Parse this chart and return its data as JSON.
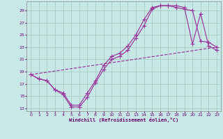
{
  "background_color": "#c8e8e8",
  "grid_color": "#a0c8b8",
  "line_color": "#993399",
  "xlabel": "Windchill (Refroidissement éolien,°C)",
  "xlim": [
    -0.5,
    23.5
  ],
  "ylim": [
    12.5,
    30.5
  ],
  "xticks": [
    0,
    1,
    2,
    3,
    4,
    5,
    6,
    7,
    8,
    9,
    10,
    11,
    12,
    13,
    14,
    15,
    16,
    17,
    18,
    19,
    20,
    21,
    22,
    23
  ],
  "yticks": [
    13,
    15,
    17,
    19,
    21,
    23,
    25,
    27,
    29
  ],
  "curve1_x": [
    0,
    1,
    2,
    3,
    4,
    5,
    6,
    7,
    8,
    9,
    10,
    11,
    12,
    13,
    14,
    15,
    16,
    17,
    18,
    19,
    20,
    21,
    22,
    23
  ],
  "curve1_y": [
    18.5,
    17.8,
    17.5,
    16.0,
    15.2,
    13.2,
    13.2,
    14.8,
    17.2,
    19.3,
    21.0,
    21.5,
    22.5,
    24.5,
    26.5,
    29.2,
    29.8,
    29.8,
    29.5,
    29.2,
    29.0,
    24.0,
    23.8,
    23.0
  ],
  "curve2_x": [
    0,
    1,
    2,
    3,
    4,
    5,
    6,
    7,
    8,
    9,
    10,
    11,
    12,
    13,
    14,
    15,
    16,
    17,
    18,
    19,
    20,
    21,
    22,
    23
  ],
  "curve2_y": [
    18.5,
    17.8,
    17.5,
    16.0,
    15.5,
    13.5,
    13.5,
    15.5,
    17.5,
    20.0,
    21.5,
    22.0,
    23.2,
    25.0,
    27.5,
    29.5,
    29.8,
    29.8,
    29.8,
    29.5,
    23.5,
    28.5,
    23.2,
    22.5
  ],
  "curve3_x": [
    0,
    23
  ],
  "curve3_y": [
    18.5,
    23.0
  ]
}
